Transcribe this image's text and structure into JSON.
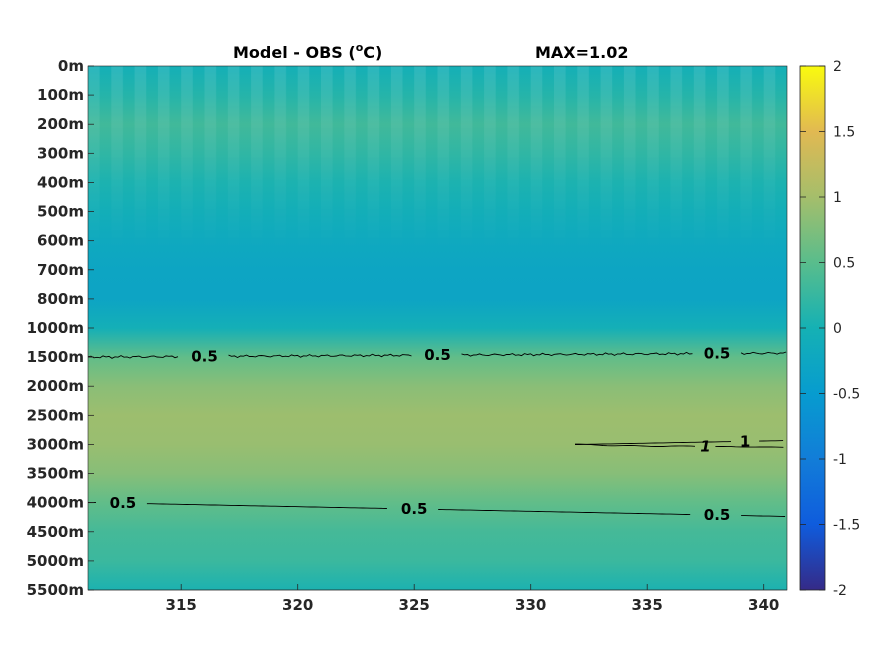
{
  "chart_data": {
    "type": "heatmap",
    "title": "Model - OBS (",
    "title_superscript": "o",
    "title_unit_tail": "C)",
    "max_label": "MAX=1.02",
    "xlabel": "",
    "ylabel": "",
    "x_ticks": [
      "315",
      "320",
      "325",
      "330",
      "335",
      "340"
    ],
    "x_tick_values": [
      315,
      320,
      325,
      330,
      335,
      340
    ],
    "xlim": [
      311,
      341
    ],
    "y_tick_labels": [
      "0m",
      "100m",
      "200m",
      "300m",
      "400m",
      "500m",
      "600m",
      "700m",
      "800m",
      "1000m",
      "1500m",
      "2000m",
      "2500m",
      "3000m",
      "3500m",
      "4000m",
      "4500m",
      "5000m",
      "5500m"
    ],
    "colorbar": {
      "range": [
        -2,
        2
      ],
      "ticks": [
        "2",
        "1.5",
        "1",
        "0.5",
        "0",
        "-0.5",
        "-1",
        "-1.5",
        "-2"
      ],
      "tick_values": [
        2,
        1.5,
        1,
        0.5,
        0,
        -0.5,
        -1,
        -1.5,
        -2
      ],
      "colormap": "parula"
    },
    "depth_profile": [
      {
        "depth": "0m",
        "value": -0.05
      },
      {
        "depth": "100m",
        "value": 0.12
      },
      {
        "depth": "200m",
        "value": 0.32
      },
      {
        "depth": "300m",
        "value": 0.2
      },
      {
        "depth": "400m",
        "value": 0.05
      },
      {
        "depth": "500m",
        "value": -0.08
      },
      {
        "depth": "600m",
        "value": -0.2
      },
      {
        "depth": "700m",
        "value": -0.28
      },
      {
        "depth": "800m",
        "value": -0.3
      },
      {
        "depth": "1000m",
        "value": -0.05
      },
      {
        "depth": "1500m",
        "value": 0.55
      },
      {
        "depth": "2000m",
        "value": 0.82
      },
      {
        "depth": "2500m",
        "value": 0.95
      },
      {
        "depth": "3000m",
        "value": 0.92
      },
      {
        "depth": "3500m",
        "value": 0.8
      },
      {
        "depth": "4000m",
        "value": 0.55
      },
      {
        "depth": "4500m",
        "value": 0.35
      },
      {
        "depth": "5000m",
        "value": 0.28
      },
      {
        "depth": "5500m",
        "value": 0.05
      }
    ],
    "contours": [
      {
        "level": "0.5",
        "label_x": [
          316,
          326,
          338
        ],
        "depth_index": 10.0
      },
      {
        "level": "1",
        "label_x": [
          339.2
        ],
        "depth_index": 12.9
      },
      {
        "level": "1",
        "label_x": [
          337.5
        ],
        "depth_index": 13.0
      },
      {
        "level": "0.5",
        "label_x": [
          312.5,
          325,
          338
        ],
        "depth_index": 15.2
      }
    ]
  }
}
